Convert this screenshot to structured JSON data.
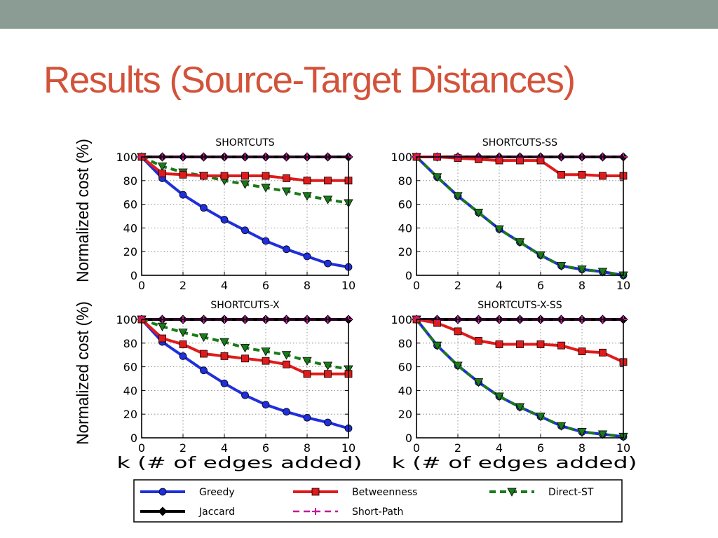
{
  "slide": {
    "title": "Results (Source-Target Distances)",
    "band_color": "#8a9c94",
    "title_color": "#d2533a"
  },
  "chart_data": [
    {
      "type": "line",
      "title": "SHORTCUTS",
      "ylabel": "Normalized cost (%)",
      "xlabel": "",
      "x": [
        0,
        1,
        2,
        3,
        4,
        5,
        6,
        7,
        8,
        9,
        10
      ],
      "xlim": [
        0,
        10
      ],
      "ylim": [
        0,
        100
      ],
      "xticks": [
        "0",
        "2",
        "4",
        "6",
        "8",
        "10"
      ],
      "yticks": [
        "0",
        "20",
        "40",
        "60",
        "80",
        "100"
      ],
      "grid": true,
      "series": [
        {
          "name": "Greedy",
          "values": [
            100,
            82,
            68,
            57,
            47,
            38,
            29,
            22,
            16,
            10,
            7
          ]
        },
        {
          "name": "Betweenness",
          "values": [
            100,
            86,
            85,
            84,
            84,
            84,
            84,
            82,
            80,
            80,
            80
          ]
        },
        {
          "name": "Direct-ST",
          "values": [
            100,
            92,
            87,
            84,
            80,
            77,
            74,
            71,
            67,
            64,
            61
          ]
        },
        {
          "name": "Jaccard",
          "values": [
            100,
            100,
            100,
            100,
            100,
            100,
            100,
            100,
            100,
            100,
            100
          ]
        },
        {
          "name": "Short-Path",
          "values": [
            100,
            100,
            100,
            100,
            100,
            100,
            100,
            100,
            100,
            100,
            100
          ]
        }
      ]
    },
    {
      "type": "line",
      "title": "SHORTCUTS-SS",
      "ylabel": "",
      "xlabel": "",
      "x": [
        0,
        1,
        2,
        3,
        4,
        5,
        6,
        7,
        8,
        9,
        10
      ],
      "xlim": [
        0,
        10
      ],
      "ylim": [
        0,
        100
      ],
      "xticks": [
        "0",
        "2",
        "4",
        "6",
        "8",
        "10"
      ],
      "yticks": [
        "0",
        "20",
        "40",
        "60",
        "80",
        "100"
      ],
      "grid": true,
      "series": [
        {
          "name": "Greedy",
          "values": [
            100,
            83,
            67,
            53,
            39,
            28,
            17,
            8,
            5,
            3,
            0
          ]
        },
        {
          "name": "Betweenness",
          "values": [
            100,
            100,
            99,
            98,
            97,
            97,
            97,
            85,
            85,
            84,
            84
          ]
        },
        {
          "name": "Direct-ST",
          "values": [
            100,
            83,
            67,
            53,
            39,
            28,
            17,
            8,
            5,
            3,
            0
          ]
        },
        {
          "name": "Jaccard",
          "values": [
            100,
            100,
            100,
            100,
            100,
            100,
            100,
            100,
            100,
            100,
            100
          ]
        },
        {
          "name": "Short-Path",
          "values": [
            100,
            100,
            100,
            100,
            100,
            100,
            100,
            100,
            100,
            100,
            100
          ]
        }
      ]
    },
    {
      "type": "line",
      "title": "SHORTCUTS-X",
      "ylabel": "Normalized cost (%)",
      "xlabel": "k (# of edges added)",
      "x": [
        0,
        1,
        2,
        3,
        4,
        5,
        6,
        7,
        8,
        9,
        10
      ],
      "xlim": [
        0,
        10
      ],
      "ylim": [
        0,
        100
      ],
      "xticks": [
        "0",
        "2",
        "4",
        "6",
        "8",
        "10"
      ],
      "yticks": [
        "0",
        "20",
        "40",
        "60",
        "80",
        "100"
      ],
      "grid": true,
      "series": [
        {
          "name": "Greedy",
          "values": [
            100,
            81,
            69,
            57,
            46,
            36,
            28,
            22,
            17,
            13,
            8
          ]
        },
        {
          "name": "Betweenness",
          "values": [
            100,
            84,
            79,
            71,
            69,
            67,
            65,
            62,
            54,
            54,
            54
          ]
        },
        {
          "name": "Direct-ST",
          "values": [
            100,
            94,
            89,
            85,
            81,
            76,
            73,
            70,
            65,
            61,
            58
          ]
        },
        {
          "name": "Jaccard",
          "values": [
            100,
            100,
            100,
            100,
            100,
            100,
            100,
            100,
            100,
            100,
            100
          ]
        },
        {
          "name": "Short-Path",
          "values": [
            100,
            100,
            100,
            100,
            100,
            100,
            100,
            100,
            100,
            100,
            100
          ]
        }
      ]
    },
    {
      "type": "line",
      "title": "SHORTCUTS-X-SS",
      "ylabel": "",
      "xlabel": "k (# of edges added)",
      "x": [
        0,
        1,
        2,
        3,
        4,
        5,
        6,
        7,
        8,
        9,
        10
      ],
      "xlim": [
        0,
        10
      ],
      "ylim": [
        0,
        100
      ],
      "xticks": [
        "0",
        "2",
        "4",
        "6",
        "8",
        "10"
      ],
      "yticks": [
        "0",
        "20",
        "40",
        "60",
        "80",
        "100"
      ],
      "grid": true,
      "series": [
        {
          "name": "Greedy",
          "values": [
            100,
            78,
            61,
            47,
            35,
            26,
            18,
            10,
            5,
            3,
            1
          ]
        },
        {
          "name": "Betweenness",
          "values": [
            100,
            97,
            90,
            82,
            79,
            79,
            79,
            78,
            73,
            72,
            64
          ]
        },
        {
          "name": "Direct-ST",
          "values": [
            100,
            78,
            61,
            47,
            35,
            26,
            18,
            10,
            5,
            3,
            1
          ]
        },
        {
          "name": "Jaccard",
          "values": [
            100,
            100,
            100,
            100,
            100,
            100,
            100,
            100,
            100,
            100,
            100
          ]
        },
        {
          "name": "Short-Path",
          "values": [
            100,
            100,
            100,
            100,
            100,
            100,
            100,
            100,
            100,
            100,
            100
          ]
        }
      ]
    }
  ],
  "legend": {
    "entries": [
      {
        "name": "Greedy",
        "color": "#1f2fdc",
        "style": "solid",
        "marker": "circle"
      },
      {
        "name": "Betweenness",
        "color": "#e01b1b",
        "style": "solid",
        "marker": "square"
      },
      {
        "name": "Direct-ST",
        "color": "#1a7a1a",
        "style": "dashed",
        "marker": "triangle-down"
      },
      {
        "name": "Jaccard",
        "color": "#000000",
        "style": "solid",
        "marker": "diamond"
      },
      {
        "name": "Short-Path",
        "color": "#c0189c",
        "style": "dashed",
        "marker": "plus"
      }
    ]
  }
}
